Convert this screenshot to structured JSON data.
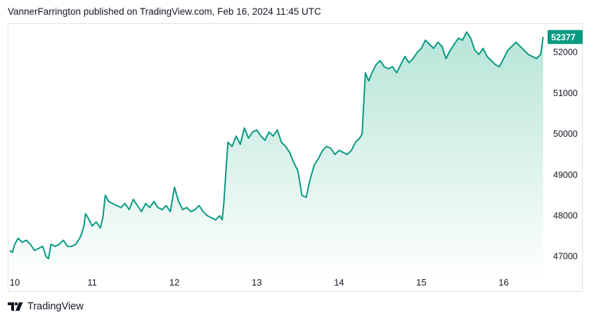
{
  "header": {
    "text": "VannerFarrington published on TradingView.com, Feb 16, 2024 11:45 UTC"
  },
  "footer": {
    "brand": "TradingView",
    "logo_icon": "tradingview-logo-icon"
  },
  "colors": {
    "line": "#089981",
    "fill_top": "#9fdcca",
    "badge": "#089981"
  },
  "chart_data": {
    "type": "area",
    "title": "",
    "xlabel": "",
    "ylabel": "",
    "x_ticks": [
      "10",
      "11",
      "12",
      "13",
      "14",
      "15",
      "16"
    ],
    "y_ticks": [
      47000,
      48000,
      49000,
      50000,
      51000,
      52000
    ],
    "ylim": [
      46600,
      52700
    ],
    "xlim": [
      10.0,
      16.5
    ],
    "last_price_label": "52377",
    "last_price": 52377,
    "grid": false,
    "series": [
      {
        "name": "",
        "points": [
          [
            10.0,
            47150
          ],
          [
            10.03,
            47100
          ],
          [
            10.06,
            47300
          ],
          [
            10.1,
            47450
          ],
          [
            10.15,
            47350
          ],
          [
            10.2,
            47400
          ],
          [
            10.25,
            47300
          ],
          [
            10.3,
            47150
          ],
          [
            10.35,
            47200
          ],
          [
            10.4,
            47250
          ],
          [
            10.44,
            47000
          ],
          [
            10.47,
            46950
          ],
          [
            10.5,
            47300
          ],
          [
            10.55,
            47250
          ],
          [
            10.6,
            47300
          ],
          [
            10.65,
            47400
          ],
          [
            10.7,
            47250
          ],
          [
            10.75,
            47250
          ],
          [
            10.8,
            47300
          ],
          [
            10.85,
            47450
          ],
          [
            10.88,
            47600
          ],
          [
            10.9,
            47750
          ],
          [
            10.92,
            48050
          ],
          [
            10.95,
            47950
          ],
          [
            11.0,
            47750
          ],
          [
            11.05,
            47850
          ],
          [
            11.1,
            47700
          ],
          [
            11.13,
            47950
          ],
          [
            11.16,
            48500
          ],
          [
            11.2,
            48350
          ],
          [
            11.25,
            48300
          ],
          [
            11.3,
            48250
          ],
          [
            11.35,
            48200
          ],
          [
            11.4,
            48300
          ],
          [
            11.45,
            48150
          ],
          [
            11.5,
            48400
          ],
          [
            11.55,
            48250
          ],
          [
            11.6,
            48100
          ],
          [
            11.65,
            48300
          ],
          [
            11.7,
            48200
          ],
          [
            11.75,
            48350
          ],
          [
            11.8,
            48200
          ],
          [
            11.85,
            48150
          ],
          [
            11.9,
            48250
          ],
          [
            11.95,
            48100
          ],
          [
            12.0,
            48700
          ],
          [
            12.05,
            48350
          ],
          [
            12.1,
            48150
          ],
          [
            12.15,
            48200
          ],
          [
            12.2,
            48100
          ],
          [
            12.25,
            48150
          ],
          [
            12.3,
            48250
          ],
          [
            12.35,
            48100
          ],
          [
            12.4,
            48000
          ],
          [
            12.45,
            47950
          ],
          [
            12.5,
            47900
          ],
          [
            12.55,
            48000
          ],
          [
            12.58,
            47900
          ],
          [
            12.6,
            48300
          ],
          [
            12.62,
            48900
          ],
          [
            12.65,
            49800
          ],
          [
            12.7,
            49700
          ],
          [
            12.75,
            49950
          ],
          [
            12.8,
            49750
          ],
          [
            12.85,
            50150
          ],
          [
            12.9,
            49900
          ],
          [
            12.95,
            50050
          ],
          [
            13.0,
            50100
          ],
          [
            13.05,
            49950
          ],
          [
            13.1,
            49850
          ],
          [
            13.15,
            50050
          ],
          [
            13.2,
            49950
          ],
          [
            13.25,
            50100
          ],
          [
            13.3,
            49800
          ],
          [
            13.35,
            49700
          ],
          [
            13.4,
            49550
          ],
          [
            13.45,
            49300
          ],
          [
            13.5,
            49100
          ],
          [
            13.55,
            48500
          ],
          [
            13.6,
            48450
          ],
          [
            13.65,
            48900
          ],
          [
            13.7,
            49250
          ],
          [
            13.75,
            49400
          ],
          [
            13.8,
            49600
          ],
          [
            13.85,
            49700
          ],
          [
            13.9,
            49650
          ],
          [
            13.95,
            49500
          ],
          [
            14.0,
            49600
          ],
          [
            14.05,
            49550
          ],
          [
            14.1,
            49500
          ],
          [
            14.15,
            49600
          ],
          [
            14.2,
            49800
          ],
          [
            14.25,
            49900
          ],
          [
            14.28,
            50000
          ],
          [
            14.32,
            51500
          ],
          [
            14.36,
            51300
          ],
          [
            14.4,
            51500
          ],
          [
            14.45,
            51700
          ],
          [
            14.5,
            51800
          ],
          [
            14.55,
            51650
          ],
          [
            14.6,
            51600
          ],
          [
            14.65,
            51650
          ],
          [
            14.7,
            51500
          ],
          [
            14.75,
            51700
          ],
          [
            14.8,
            51900
          ],
          [
            14.85,
            51750
          ],
          [
            14.9,
            51850
          ],
          [
            14.95,
            52000
          ],
          [
            15.0,
            52100
          ],
          [
            15.05,
            52300
          ],
          [
            15.1,
            52200
          ],
          [
            15.15,
            52100
          ],
          [
            15.2,
            52250
          ],
          [
            15.25,
            52150
          ],
          [
            15.3,
            51850
          ],
          [
            15.35,
            52050
          ],
          [
            15.4,
            52200
          ],
          [
            15.45,
            52350
          ],
          [
            15.5,
            52300
          ],
          [
            15.55,
            52500
          ],
          [
            15.6,
            52350
          ],
          [
            15.65,
            52050
          ],
          [
            15.7,
            51950
          ],
          [
            15.75,
            52100
          ],
          [
            15.8,
            51900
          ],
          [
            15.85,
            51800
          ],
          [
            15.9,
            51700
          ],
          [
            15.95,
            51650
          ],
          [
            16.0,
            51850
          ],
          [
            16.05,
            52050
          ],
          [
            16.1,
            52150
          ],
          [
            16.15,
            52250
          ],
          [
            16.2,
            52150
          ],
          [
            16.25,
            52050
          ],
          [
            16.3,
            51950
          ],
          [
            16.35,
            51900
          ],
          [
            16.4,
            51850
          ],
          [
            16.45,
            51950
          ],
          [
            16.48,
            52377
          ]
        ]
      }
    ]
  }
}
